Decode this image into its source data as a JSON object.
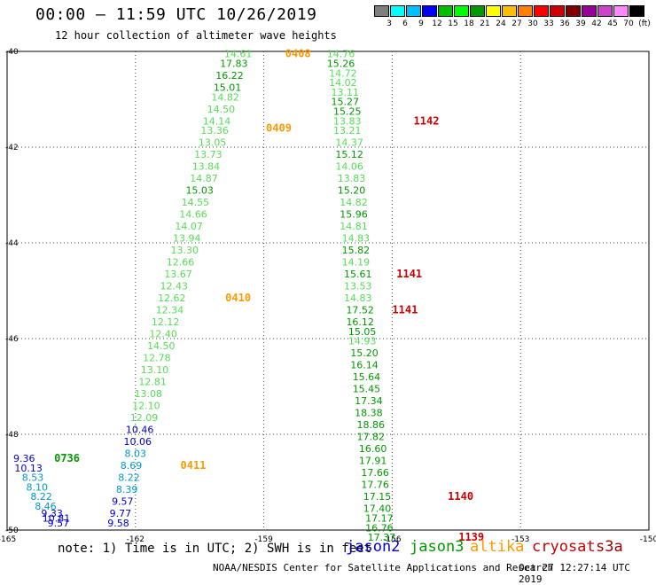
{
  "header": {
    "title": "00:00 – 11:59 UTC 10/26/2019",
    "subtitle": "12 hour collection of altimeter wave heights"
  },
  "legend": {
    "colors": [
      "#7f7f7f",
      "#00ffff",
      "#00bfff",
      "#0000ff",
      "#00bf00",
      "#00ff00",
      "#009900",
      "#ffff00",
      "#ffbf00",
      "#ff8000",
      "#ff0000",
      "#cc0000",
      "#800000",
      "#990099",
      "#cc44cc",
      "#ff88ff",
      "#000000"
    ],
    "labels": [
      "3",
      "6",
      "9",
      "12",
      "15",
      "18",
      "21",
      "24",
      "27",
      "30",
      "33",
      "36",
      "39",
      "42",
      "45",
      "70",
      "(ft)"
    ]
  },
  "footer": {
    "note": "note: 1) Time is in UTC; 2) SWH is in feet",
    "credit": "NOAA/NESDIS Center for Satellite Applications and Research",
    "generated": "Oct 27 12:27:14 UTC 2019",
    "satellites": [
      {
        "name": "jason2",
        "color": "#0000cc"
      },
      {
        "name": "jason3",
        "color": "#009900"
      },
      {
        "name": "altika",
        "color": "#ff9900"
      },
      {
        "name": "cryosat",
        "color": "#cc0000"
      },
      {
        "name": "s3a",
        "color": "#990000"
      }
    ]
  },
  "chart_data": {
    "type": "scatter",
    "xlim": [
      -165,
      -150
    ],
    "ylim": [
      -50,
      -40
    ],
    "x_ticks": [
      -165,
      -162,
      -159,
      -156,
      -153,
      -150
    ],
    "y_ticks": [
      -40,
      -42,
      -44,
      -46,
      -48,
      -50
    ],
    "grid": true,
    "points": [
      {
        "lon": -159.6,
        "lat": -40.05,
        "v": "14.61",
        "c": "#55dd55"
      },
      {
        "lon": -159.7,
        "lat": -40.25,
        "v": "17.83",
        "c": "#009900"
      },
      {
        "lon": -159.8,
        "lat": -40.5,
        "v": "16.22",
        "c": "#009900"
      },
      {
        "lon": -159.85,
        "lat": -40.75,
        "v": "15.01",
        "c": "#009900"
      },
      {
        "lon": -159.9,
        "lat": -40.95,
        "v": "14.82",
        "c": "#55dd55"
      },
      {
        "lon": -160.0,
        "lat": -41.2,
        "v": "14.50",
        "c": "#55dd55"
      },
      {
        "lon": -160.1,
        "lat": -41.45,
        "v": "14.14",
        "c": "#55dd55"
      },
      {
        "lon": -160.15,
        "lat": -41.65,
        "v": "13.36",
        "c": "#55dd55"
      },
      {
        "lon": -160.2,
        "lat": -41.9,
        "v": "13.05",
        "c": "#55dd55"
      },
      {
        "lon": -160.3,
        "lat": -42.15,
        "v": "13.73",
        "c": "#55dd55"
      },
      {
        "lon": -160.35,
        "lat": -42.4,
        "v": "13.84",
        "c": "#55dd55"
      },
      {
        "lon": -160.4,
        "lat": -42.65,
        "v": "14.87",
        "c": "#55dd55"
      },
      {
        "lon": -160.5,
        "lat": -42.9,
        "v": "15.03",
        "c": "#009900"
      },
      {
        "lon": -160.6,
        "lat": -43.15,
        "v": "14.55",
        "c": "#55dd55"
      },
      {
        "lon": -160.65,
        "lat": -43.4,
        "v": "14.66",
        "c": "#55dd55"
      },
      {
        "lon": -160.75,
        "lat": -43.65,
        "v": "14.07",
        "c": "#55dd55"
      },
      {
        "lon": -160.8,
        "lat": -43.9,
        "v": "13.94",
        "c": "#55dd55"
      },
      {
        "lon": -160.85,
        "lat": -44.15,
        "v": "13.30",
        "c": "#55dd55"
      },
      {
        "lon": -160.95,
        "lat": -44.4,
        "v": "12.66",
        "c": "#55dd55"
      },
      {
        "lon": -161.0,
        "lat": -44.65,
        "v": "13.67",
        "c": "#55dd55"
      },
      {
        "lon": -161.1,
        "lat": -44.9,
        "v": "12.43",
        "c": "#55dd55"
      },
      {
        "lon": -161.15,
        "lat": -45.15,
        "v": "12.62",
        "c": "#55dd55"
      },
      {
        "lon": -161.2,
        "lat": -45.4,
        "v": "12.34",
        "c": "#55dd55"
      },
      {
        "lon": -161.3,
        "lat": -45.65,
        "v": "12.12",
        "c": "#55dd55"
      },
      {
        "lon": -161.35,
        "lat": -45.9,
        "v": "12.40",
        "c": "#55dd55"
      },
      {
        "lon": -161.4,
        "lat": -46.15,
        "v": "14.50",
        "c": "#55dd55"
      },
      {
        "lon": -161.5,
        "lat": -46.4,
        "v": "12.78",
        "c": "#55dd55"
      },
      {
        "lon": -161.55,
        "lat": -46.65,
        "v": "13.10",
        "c": "#55dd55"
      },
      {
        "lon": -161.6,
        "lat": -46.9,
        "v": "12.81",
        "c": "#55dd55"
      },
      {
        "lon": -161.7,
        "lat": -47.15,
        "v": "13.08",
        "c": "#55dd55"
      },
      {
        "lon": -161.75,
        "lat": -47.4,
        "v": "12.10",
        "c": "#55dd55"
      },
      {
        "lon": -161.8,
        "lat": -47.65,
        "v": "12.09",
        "c": "#55dd55"
      },
      {
        "lon": -161.9,
        "lat": -47.9,
        "v": "10.46",
        "c": "#0000cc"
      },
      {
        "lon": -161.95,
        "lat": -48.15,
        "v": "10.06",
        "c": "#0000cc"
      },
      {
        "lon": -162.0,
        "lat": -48.4,
        "v": "8.03",
        "c": "#0099cc"
      },
      {
        "lon": -162.1,
        "lat": -48.65,
        "v": "8.69",
        "c": "#0099cc"
      },
      {
        "lon": -162.15,
        "lat": -48.9,
        "v": "8.22",
        "c": "#0099cc"
      },
      {
        "lon": -162.2,
        "lat": -49.15,
        "v": "8.39",
        "c": "#0099cc"
      },
      {
        "lon": -162.3,
        "lat": -49.4,
        "v": "9.57",
        "c": "#0000cc"
      },
      {
        "lon": -162.35,
        "lat": -49.65,
        "v": "9.77",
        "c": "#0000cc"
      },
      {
        "lon": -162.4,
        "lat": -49.85,
        "v": "9.58",
        "c": "#0000cc"
      },
      {
        "lon": -164.6,
        "lat": -48.5,
        "v": "9.36",
        "c": "#0000cc"
      },
      {
        "lon": -164.5,
        "lat": -48.7,
        "v": "10.13",
        "c": "#0000cc"
      },
      {
        "lon": -164.4,
        "lat": -48.9,
        "v": "8.53",
        "c": "#0099cc"
      },
      {
        "lon": -164.3,
        "lat": -49.1,
        "v": "8.10",
        "c": "#0099cc"
      },
      {
        "lon": -164.2,
        "lat": -49.3,
        "v": "8.22",
        "c": "#0099cc"
      },
      {
        "lon": -164.1,
        "lat": -49.5,
        "v": "8.46",
        "c": "#0099cc"
      },
      {
        "lon": -163.95,
        "lat": -49.65,
        "v": "9.33",
        "c": "#0000cc"
      },
      {
        "lon": -163.85,
        "lat": -49.75,
        "v": "10.81",
        "c": "#0000cc"
      },
      {
        "lon": -163.8,
        "lat": -49.85,
        "v": "9.57",
        "c": "#0000cc"
      },
      {
        "lon": -157.2,
        "lat": -40.05,
        "v": "14.76",
        "c": "#55dd55"
      },
      {
        "lon": -157.2,
        "lat": -40.25,
        "v": "15.26",
        "c": "#009900"
      },
      {
        "lon": -157.15,
        "lat": -40.45,
        "v": "14.72",
        "c": "#55dd55"
      },
      {
        "lon": -157.15,
        "lat": -40.65,
        "v": "14.02",
        "c": "#55dd55"
      },
      {
        "lon": -157.1,
        "lat": -40.85,
        "v": "13.11",
        "c": "#55dd55"
      },
      {
        "lon": -157.1,
        "lat": -41.05,
        "v": "15.27",
        "c": "#009900"
      },
      {
        "lon": -157.05,
        "lat": -41.25,
        "v": "15.25",
        "c": "#009900"
      },
      {
        "lon": -157.05,
        "lat": -41.45,
        "v": "13.83",
        "c": "#55dd55"
      },
      {
        "lon": -157.05,
        "lat": -41.65,
        "v": "13.21",
        "c": "#55dd55"
      },
      {
        "lon": -157.0,
        "lat": -41.9,
        "v": "14.37",
        "c": "#55dd55"
      },
      {
        "lon": -157.0,
        "lat": -42.15,
        "v": "15.12",
        "c": "#009900"
      },
      {
        "lon": -157.0,
        "lat": -42.4,
        "v": "14.06",
        "c": "#55dd55"
      },
      {
        "lon": -156.95,
        "lat": -42.65,
        "v": "13.83",
        "c": "#55dd55"
      },
      {
        "lon": -156.95,
        "lat": -42.9,
        "v": "15.20",
        "c": "#009900"
      },
      {
        "lon": -156.9,
        "lat": -43.15,
        "v": "14.82",
        "c": "#55dd55"
      },
      {
        "lon": -156.9,
        "lat": -43.4,
        "v": "15.96",
        "c": "#009900"
      },
      {
        "lon": -156.9,
        "lat": -43.65,
        "v": "14.81",
        "c": "#55dd55"
      },
      {
        "lon": -156.85,
        "lat": -43.9,
        "v": "14.83",
        "c": "#55dd55"
      },
      {
        "lon": -156.85,
        "lat": -44.15,
        "v": "15.82",
        "c": "#009900"
      },
      {
        "lon": -156.85,
        "lat": -44.4,
        "v": "14.19",
        "c": "#55dd55"
      },
      {
        "lon": -156.8,
        "lat": -44.65,
        "v": "15.61",
        "c": "#009900"
      },
      {
        "lon": -156.8,
        "lat": -44.9,
        "v": "13.53",
        "c": "#55dd55"
      },
      {
        "lon": -156.8,
        "lat": -45.15,
        "v": "14.83",
        "c": "#55dd55"
      },
      {
        "lon": -156.75,
        "lat": -45.4,
        "v": "17.52",
        "c": "#009900"
      },
      {
        "lon": -156.75,
        "lat": -45.65,
        "v": "16.12",
        "c": "#009900"
      },
      {
        "lon": -156.7,
        "lat": -45.85,
        "v": "15.05",
        "c": "#009900"
      },
      {
        "lon": -156.7,
        "lat": -46.05,
        "v": "14.93",
        "c": "#55dd55"
      },
      {
        "lon": -156.65,
        "lat": -46.3,
        "v": "15.20",
        "c": "#009900"
      },
      {
        "lon": -156.65,
        "lat": -46.55,
        "v": "16.14",
        "c": "#009900"
      },
      {
        "lon": -156.6,
        "lat": -46.8,
        "v": "15.64",
        "c": "#009900"
      },
      {
        "lon": -156.6,
        "lat": -47.05,
        "v": "15.45",
        "c": "#009900"
      },
      {
        "lon": -156.55,
        "lat": -47.3,
        "v": "17.34",
        "c": "#009900"
      },
      {
        "lon": -156.55,
        "lat": -47.55,
        "v": "18.38",
        "c": "#009900"
      },
      {
        "lon": -156.5,
        "lat": -47.8,
        "v": "18.86",
        "c": "#009900"
      },
      {
        "lon": -156.5,
        "lat": -48.05,
        "v": "17.82",
        "c": "#009900"
      },
      {
        "lon": -156.45,
        "lat": -48.3,
        "v": "16.60",
        "c": "#009900"
      },
      {
        "lon": -156.45,
        "lat": -48.55,
        "v": "17.91",
        "c": "#009900"
      },
      {
        "lon": -156.4,
        "lat": -48.8,
        "v": "17.66",
        "c": "#009900"
      },
      {
        "lon": -156.4,
        "lat": -49.05,
        "v": "17.76",
        "c": "#009900"
      },
      {
        "lon": -156.35,
        "lat": -49.3,
        "v": "17.15",
        "c": "#009900"
      },
      {
        "lon": -156.35,
        "lat": -49.55,
        "v": "17.40",
        "c": "#009900"
      },
      {
        "lon": -156.3,
        "lat": -49.75,
        "v": "17.17",
        "c": "#009900"
      },
      {
        "lon": -156.3,
        "lat": -49.95,
        "v": "16.76",
        "c": "#009900"
      },
      {
        "lon": -156.25,
        "lat": -50.15,
        "v": "17.37",
        "c": "#009900"
      }
    ],
    "time_labels": [
      {
        "lon": -158.2,
        "lat": -40.05,
        "t": "0408",
        "c": "#ff9900"
      },
      {
        "lon": -158.65,
        "lat": -41.6,
        "t": "0409",
        "c": "#ff9900"
      },
      {
        "lon": -159.6,
        "lat": -45.15,
        "t": "0410",
        "c": "#ff9900"
      },
      {
        "lon": -160.65,
        "lat": -48.65,
        "t": "0411",
        "c": "#ff9900"
      },
      {
        "lon": -163.6,
        "lat": -48.5,
        "t": "0736",
        "c": "#009900"
      },
      {
        "lon": -155.2,
        "lat": -41.45,
        "t": "1142",
        "c": "#cc0000"
      },
      {
        "lon": -155.6,
        "lat": -44.65,
        "t": "1141",
        "c": "#cc0000"
      },
      {
        "lon": -155.7,
        "lat": -45.4,
        "t": "1141",
        "c": "#cc0000"
      },
      {
        "lon": -154.4,
        "lat": -49.3,
        "t": "1140",
        "c": "#cc0000"
      },
      {
        "lon": -154.15,
        "lat": -50.15,
        "t": "1139",
        "c": "#cc0000"
      }
    ]
  }
}
